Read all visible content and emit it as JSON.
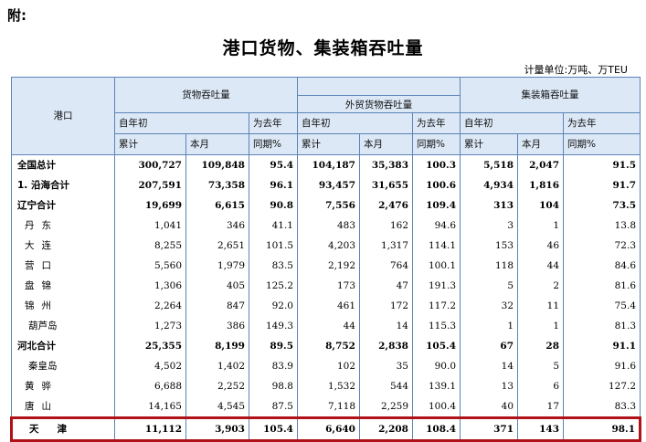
{
  "appendix_label": "附:",
  "title": "港口货物、集装箱吞吐量",
  "unit": "计量单位:万吨、万TEU",
  "header": {
    "port": "港口",
    "cargo": "货物吞吐量",
    "foreign": "外贸货物吞吐量",
    "container": "集装箱吞吐量",
    "ytd_top": "自年初",
    "ytd_bottom": "累计",
    "month": "本月",
    "yoy_top": "为去年",
    "yoy_bottom": "同期%"
  },
  "rows": [
    {
      "name": "全国总计",
      "style": "bold",
      "v": [
        "300,727",
        "109,848",
        "95.4",
        "104,187",
        "35,383",
        "100.3",
        "5,518",
        "2,047",
        "91.5"
      ]
    },
    {
      "name": "1. 沿海合计",
      "style": "bold",
      "v": [
        "207,591",
        "73,358",
        "96.1",
        "93,457",
        "31,655",
        "100.6",
        "4,934",
        "1,816",
        "91.7"
      ]
    },
    {
      "name": "辽宁合计",
      "style": "bold",
      "v": [
        "19,699",
        "6,615",
        "90.8",
        "7,556",
        "2,476",
        "109.4",
        "313",
        "104",
        "73.5"
      ]
    },
    {
      "name": "丹东",
      "style": "indent",
      "v": [
        "1,041",
        "346",
        "41.1",
        "483",
        "162",
        "94.6",
        "3",
        "1",
        "13.8"
      ]
    },
    {
      "name": "大连",
      "style": "indent",
      "v": [
        "8,255",
        "2,651",
        "101.5",
        "4,203",
        "1,317",
        "114.1",
        "153",
        "46",
        "72.3"
      ]
    },
    {
      "name": "营口",
      "style": "indent",
      "v": [
        "5,560",
        "1,979",
        "83.5",
        "2,192",
        "764",
        "100.1",
        "118",
        "44",
        "84.6"
      ]
    },
    {
      "name": "盘锦",
      "style": "indent",
      "v": [
        "1,306",
        "405",
        "125.2",
        "173",
        "47",
        "191.3",
        "5",
        "2",
        "81.6"
      ]
    },
    {
      "name": "锦州",
      "style": "indent",
      "v": [
        "2,264",
        "847",
        "92.0",
        "461",
        "172",
        "117.2",
        "32",
        "11",
        "75.4"
      ]
    },
    {
      "name": "葫芦岛",
      "style": "indent3",
      "v": [
        "1,273",
        "386",
        "149.3",
        "44",
        "14",
        "115.3",
        "1",
        "1",
        "81.3"
      ]
    },
    {
      "name": "河北合计",
      "style": "bold",
      "v": [
        "25,355",
        "8,199",
        "89.5",
        "8,752",
        "2,838",
        "105.4",
        "67",
        "28",
        "91.1"
      ]
    },
    {
      "name": "秦皇岛",
      "style": "indent3",
      "v": [
        "4,502",
        "1,402",
        "83.9",
        "102",
        "35",
        "90.0",
        "14",
        "5",
        "91.6"
      ]
    },
    {
      "name": "黄骅",
      "style": "indent",
      "v": [
        "6,688",
        "2,252",
        "98.8",
        "1,532",
        "544",
        "139.1",
        "13",
        "6",
        "127.2"
      ]
    },
    {
      "name": "唐山",
      "style": "indent",
      "v": [
        "14,165",
        "4,545",
        "87.5",
        "7,118",
        "2,259",
        "100.4",
        "40",
        "17",
        "83.3"
      ]
    },
    {
      "name": "天津",
      "style": "hl",
      "v": [
        "11,112",
        "3,903",
        "105.4",
        "6,640",
        "2,208",
        "108.4",
        "371",
        "143",
        "98.1"
      ]
    }
  ]
}
